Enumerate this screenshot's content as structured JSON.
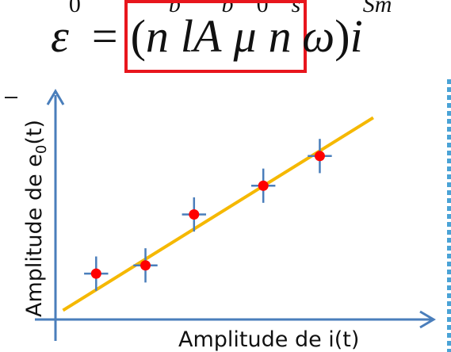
{
  "equation": {
    "epsilon": "ε",
    "eps_sub": "0",
    "equals": "=",
    "open": "(",
    "n1": "n",
    "n1_sub": "b",
    "l": "l",
    "A": "A",
    "A_sub": "b",
    "mu": "μ",
    "mu_sub": "0",
    "n2": "n",
    "n2_sub": "s",
    "omega": "ω",
    "close": ")",
    "i": "i",
    "i_sub": "Sm",
    "highlight_color": "#e8161d"
  },
  "colors": {
    "axis": "#4a7ebb",
    "fit_line": "#f5b800",
    "points": "#ff0000",
    "error_bars": "#4a7ebb"
  },
  "chart_data": {
    "type": "scatter",
    "xlabel": "Amplitude de i(t)",
    "ylabel_prefix": "Amplitude de e",
    "ylabel_sub": "0",
    "ylabel_suffix": "(t)",
    "xlim": [
      0,
      100
    ],
    "ylim": [
      0,
      100
    ],
    "grid": false,
    "points": [
      {
        "x": 10.8,
        "y": 20.1,
        "xerr": 3.2,
        "yerr": 7.5
      },
      {
        "x": 23.9,
        "y": 23.7,
        "xerr": 3.2,
        "yerr": 7.5
      },
      {
        "x": 36.8,
        "y": 46.0,
        "xerr": 3.2,
        "yerr": 7.5
      },
      {
        "x": 55.2,
        "y": 58.6,
        "xerr": 3.2,
        "yerr": 7.5
      },
      {
        "x": 70.2,
        "y": 71.6,
        "xerr": 3.2,
        "yerr": 7.5
      }
    ],
    "fit_line": {
      "x": [
        2.0,
        84.4
      ],
      "y": [
        4.0,
        88.4
      ]
    }
  }
}
